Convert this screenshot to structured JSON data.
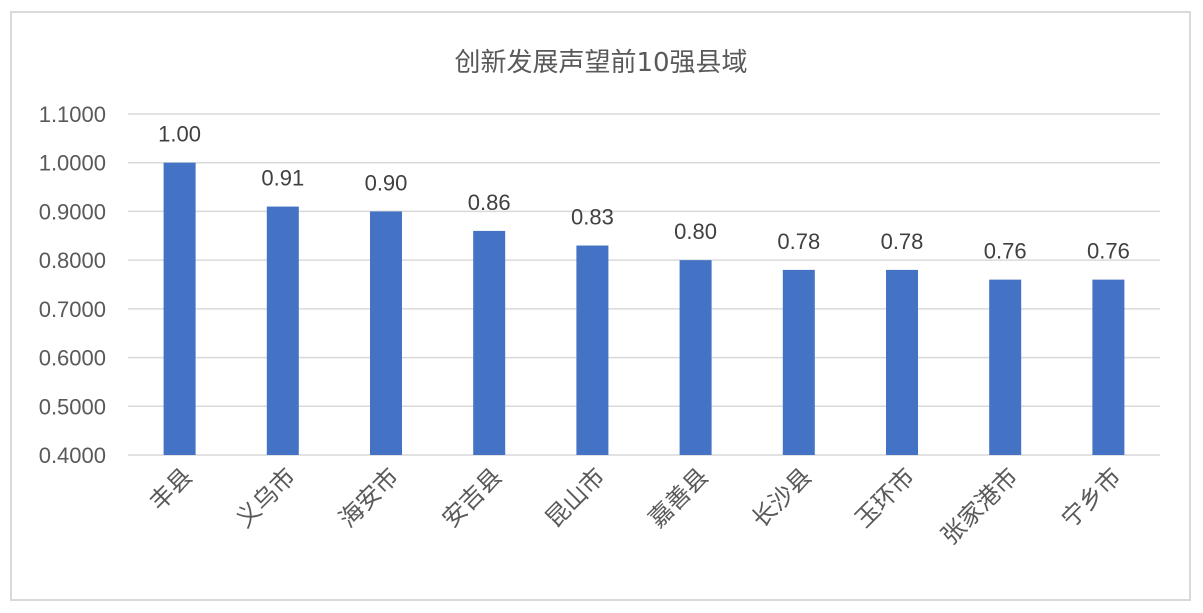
{
  "chart_data": {
    "type": "bar",
    "title": "创新发展声望前10强县域",
    "categories": [
      "丰县",
      "义乌市",
      "海安市",
      "安吉县",
      "昆山市",
      "嘉善县",
      "长沙县",
      "玉环市",
      "张家港市",
      "宁乡市"
    ],
    "values": [
      1.0,
      0.91,
      0.9,
      0.86,
      0.83,
      0.8,
      0.78,
      0.78,
      0.76,
      0.76
    ],
    "data_labels": [
      "1.00",
      "0.91",
      "0.90",
      "0.86",
      "0.83",
      "0.80",
      "0.78",
      "0.78",
      "0.76",
      "0.76"
    ],
    "ylim": [
      0.4,
      1.1
    ],
    "yticks": [
      "0.4000",
      "0.5000",
      "0.6000",
      "0.7000",
      "0.8000",
      "0.9000",
      "1.0000",
      "1.1000"
    ],
    "ytick_values": [
      0.4,
      0.5,
      0.6,
      0.7,
      0.8,
      0.9,
      1.0,
      1.1
    ],
    "grid": true,
    "legend": "none",
    "bar_color": "#4472c4"
  }
}
